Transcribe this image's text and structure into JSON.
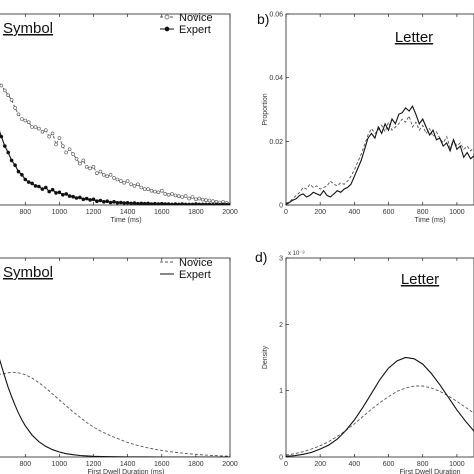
{
  "chart_data": [
    {
      "id": "a",
      "type": "line",
      "panel_label": "",
      "title": "Symbol",
      "xlabel": "Time (ms)",
      "ylabel": "",
      "xlim": [
        640,
        2000
      ],
      "ylim": [
        0,
        0.06
      ],
      "xticks": [
        800,
        1000,
        1200,
        1400,
        1600,
        1800,
        2000
      ],
      "yticks": [],
      "legend": "top-right",
      "series": [
        {
          "name": "Novice",
          "style": "dashed-open-marker",
          "x": [
            640,
            660,
            680,
            700,
            720,
            740,
            760,
            780,
            800,
            820,
            840,
            860,
            880,
            900,
            920,
            940,
            960,
            980,
            1000,
            1020,
            1040,
            1060,
            1080,
            1100,
            1120,
            1140,
            1160,
            1180,
            1200,
            1220,
            1240,
            1260,
            1280,
            1300,
            1320,
            1340,
            1360,
            1380,
            1400,
            1420,
            1440,
            1460,
            1480,
            1500,
            1520,
            1540,
            1560,
            1580,
            1600,
            1620,
            1640,
            1660,
            1680,
            1700,
            1720,
            1740,
            1760,
            1780,
            1800,
            1820,
            1840,
            1860,
            1880,
            1900,
            1920,
            1940,
            1960,
            1980,
            2000
          ],
          "y": [
            0.0395,
            0.0375,
            0.036,
            0.0345,
            0.033,
            0.0305,
            0.0285,
            0.027,
            0.0265,
            0.026,
            0.0245,
            0.0245,
            0.024,
            0.023,
            0.0235,
            0.0215,
            0.0225,
            0.019,
            0.021,
            0.0185,
            0.0165,
            0.0175,
            0.016,
            0.0145,
            0.013,
            0.014,
            0.012,
            0.0115,
            0.012,
            0.01,
            0.0105,
            0.0095,
            0.009,
            0.0095,
            0.0085,
            0.008,
            0.0075,
            0.007,
            0.0075,
            0.0065,
            0.006,
            0.0065,
            0.0055,
            0.005,
            0.005,
            0.0045,
            0.0042,
            0.004,
            0.0045,
            0.0035,
            0.0032,
            0.0035,
            0.003,
            0.0028,
            0.0025,
            0.0028,
            0.002,
            0.0025,
            0.0018,
            0.002,
            0.0017,
            0.0015,
            0.0014,
            0.0012,
            0.001,
            0.0008,
            0.0009,
            0.0006,
            0.0005
          ]
        },
        {
          "name": "Expert",
          "style": "solid-filled-marker",
          "x": [
            640,
            660,
            680,
            700,
            720,
            740,
            760,
            780,
            800,
            820,
            840,
            860,
            880,
            900,
            920,
            940,
            960,
            980,
            1000,
            1020,
            1040,
            1060,
            1080,
            1100,
            1120,
            1140,
            1160,
            1180,
            1200,
            1220,
            1240,
            1260,
            1280,
            1300,
            1320,
            1340,
            1360,
            1380,
            1400,
            1420,
            1440,
            1460,
            1480,
            1500,
            1520,
            1540,
            1560,
            1580,
            1600,
            1620,
            1640,
            1660,
            1680,
            1700,
            1720,
            1740,
            1760,
            1780,
            1800,
            1820,
            1840,
            1860,
            1880,
            1900,
            1920,
            1940,
            1960,
            1980,
            2000
          ],
          "y": [
            0.0245,
            0.0215,
            0.0185,
            0.0165,
            0.014,
            0.0125,
            0.0105,
            0.0095,
            0.008,
            0.0072,
            0.0068,
            0.006,
            0.0058,
            0.005,
            0.0055,
            0.0042,
            0.0048,
            0.0038,
            0.004,
            0.0032,
            0.0035,
            0.0028,
            0.0026,
            0.0022,
            0.0024,
            0.0018,
            0.002,
            0.0016,
            0.0018,
            0.0012,
            0.0014,
            0.001,
            0.0012,
            0.0008,
            0.001,
            0.0007,
            0.0008,
            0.0006,
            0.0007,
            0.0005,
            0.0006,
            0.0004,
            0.0005,
            0.0004,
            0.0005,
            0.0003,
            0.0004,
            0.0003,
            0.0004,
            0.0003,
            0.0003,
            0.0002,
            0.0003,
            0.0002,
            0.0003,
            0.0002,
            0.0002,
            0.0002,
            0.0003,
            0.0002,
            0.0002,
            0.0002,
            0.0002,
            0.0001,
            0.0002,
            0.0001,
            0.0002,
            0.0001,
            0.0001
          ]
        }
      ]
    },
    {
      "id": "b",
      "type": "line",
      "panel_label": "b)",
      "title": "Letter",
      "xlabel": "Time (ms)",
      "ylabel": "Proportion",
      "xlim": [
        0,
        1100
      ],
      "ylim": [
        0,
        0.06
      ],
      "xticks": [
        0,
        200,
        400,
        600,
        800,
        1000
      ],
      "yticks": [
        0,
        0.02,
        0.04,
        0.06
      ],
      "ytick_labels": [
        "0",
        "0.02",
        "0.04",
        "0.06"
      ],
      "series": [
        {
          "name": "Novice",
          "style": "dashed",
          "x": [
            0,
            20,
            40,
            60,
            80,
            100,
            120,
            140,
            160,
            180,
            200,
            220,
            240,
            260,
            280,
            300,
            320,
            340,
            360,
            380,
            400,
            420,
            440,
            460,
            480,
            500,
            520,
            540,
            560,
            580,
            600,
            620,
            640,
            660,
            680,
            700,
            720,
            740,
            760,
            780,
            800,
            820,
            840,
            860,
            880,
            900,
            920,
            940,
            960,
            980,
            1000,
            1020,
            1040,
            1060,
            1080,
            1100
          ],
          "y": [
            0.0005,
            0.001,
            0.002,
            0.003,
            0.004,
            0.0055,
            0.005,
            0.0065,
            0.0055,
            0.006,
            0.005,
            0.0055,
            0.006,
            0.0075,
            0.0065,
            0.006,
            0.007,
            0.0065,
            0.0075,
            0.009,
            0.011,
            0.0135,
            0.016,
            0.019,
            0.022,
            0.024,
            0.0225,
            0.0235,
            0.025,
            0.023,
            0.026,
            0.0235,
            0.0245,
            0.0255,
            0.027,
            0.026,
            0.028,
            0.0245,
            0.026,
            0.0235,
            0.025,
            0.0225,
            0.024,
            0.0215,
            0.023,
            0.021,
            0.0195,
            0.0215,
            0.018,
            0.0205,
            0.0185,
            0.0195,
            0.0175,
            0.0185,
            0.017,
            0.018
          ]
        },
        {
          "name": "Expert",
          "style": "solid",
          "x": [
            0,
            20,
            40,
            60,
            80,
            100,
            120,
            140,
            160,
            180,
            200,
            220,
            240,
            260,
            280,
            300,
            320,
            340,
            360,
            380,
            400,
            420,
            440,
            460,
            480,
            500,
            520,
            540,
            560,
            580,
            600,
            620,
            640,
            660,
            680,
            700,
            720,
            740,
            760,
            780,
            800,
            820,
            840,
            860,
            880,
            900,
            920,
            940,
            960,
            980,
            1000,
            1020,
            1040,
            1060,
            1080,
            1100
          ],
          "y": [
            0.0002,
            0.0008,
            0.0015,
            0.002,
            0.003,
            0.0035,
            0.0025,
            0.003,
            0.004,
            0.0035,
            0.003,
            0.0045,
            0.003,
            0.0025,
            0.0035,
            0.0045,
            0.004,
            0.005,
            0.0055,
            0.0065,
            0.009,
            0.0115,
            0.014,
            0.0175,
            0.021,
            0.0225,
            0.021,
            0.0245,
            0.0225,
            0.0255,
            0.0235,
            0.027,
            0.0255,
            0.0285,
            0.029,
            0.0305,
            0.0295,
            0.031,
            0.0285,
            0.0255,
            0.027,
            0.0245,
            0.022,
            0.0235,
            0.0205,
            0.021,
            0.0185,
            0.0195,
            0.017,
            0.0205,
            0.0175,
            0.0185,
            0.015,
            0.0165,
            0.0145,
            0.0155
          ]
        }
      ]
    },
    {
      "id": "c",
      "type": "line",
      "panel_label": "",
      "title": "Symbol",
      "xlabel": "First Dwell Duration (ms)",
      "ylabel": "",
      "xlim": [
        640,
        2000
      ],
      "ylim": [
        0,
        0.003
      ],
      "xticks": [
        800,
        1000,
        1200,
        1400,
        1600,
        1800,
        2000
      ],
      "yticks": [],
      "legend": "top-right",
      "series": [
        {
          "name": "Novice",
          "style": "dashed",
          "x": [
            640,
            680,
            720,
            760,
            800,
            840,
            880,
            920,
            960,
            1000,
            1040,
            1080,
            1120,
            1160,
            1200,
            1250,
            1300,
            1350,
            1400,
            1450,
            1500,
            1550,
            1600,
            1650,
            1700,
            1750,
            1800,
            1850,
            1900,
            1950,
            2000
          ],
          "y": [
            0.00124,
            0.00126,
            0.00128,
            0.00127,
            0.00124,
            0.00119,
            0.00112,
            0.00104,
            0.00095,
            0.00086,
            0.00077,
            0.00068,
            0.0006,
            0.00052,
            0.00045,
            0.00038,
            0.00032,
            0.00027,
            0.00022,
            0.00018,
            0.00015,
            0.00012,
            0.0001,
            8e-05,
            6.5e-05,
            5e-05,
            4e-05,
            3e-05,
            2.2e-05,
            1.6e-05,
            1.2e-05
          ]
        },
        {
          "name": "Expert",
          "style": "solid",
          "x": [
            640,
            660,
            680,
            700,
            720,
            740,
            760,
            780,
            800,
            840,
            880,
            920,
            960,
            1000,
            1040,
            1080,
            1120,
            1160,
            1200,
            1250,
            1300,
            1350,
            1400,
            1450,
            1500,
            1600,
            1700,
            1800,
            1900,
            2000
          ],
          "y": [
            0.00155,
            0.00138,
            0.00121,
            0.00105,
            0.00091,
            0.00078,
            0.00066,
            0.00056,
            0.00047,
            0.00033,
            0.00023,
            0.00016,
            0.00011,
            7.5e-05,
            5e-05,
            3.4e-05,
            2.3e-05,
            1.6e-05,
            1.1e-05,
            7e-06,
            5e-06,
            3e-06,
            2e-06,
            1.5e-06,
            1e-06,
            5e-07,
            3e-07,
            2e-07,
            1e-07,
            1e-07
          ]
        }
      ]
    },
    {
      "id": "d",
      "type": "line",
      "panel_label": "d)",
      "title": "Letter",
      "xlabel": "First Dwell Duration",
      "ylabel": "Density",
      "exponent_label": "x 10⁻³",
      "xlim": [
        0,
        1100
      ],
      "ylim": [
        0,
        0.003
      ],
      "xticks": [
        0,
        200,
        400,
        600,
        800,
        1000
      ],
      "yticks": [
        0,
        0.001,
        0.002,
        0.003
      ],
      "ytick_labels": [
        "0",
        "1",
        "2",
        "3"
      ],
      "series": [
        {
          "name": "Novice",
          "style": "dashed",
          "x": [
            0,
            50,
            100,
            150,
            200,
            250,
            300,
            350,
            400,
            450,
            500,
            550,
            600,
            650,
            700,
            750,
            800,
            850,
            900,
            950,
            1000,
            1050,
            1100
          ],
          "y": [
            3e-05,
            5e-05,
            8e-05,
            0.00012,
            0.00017,
            0.00023,
            0.00031,
            0.0004,
            0.0005,
            0.00061,
            0.00072,
            0.00082,
            0.00091,
            0.00099,
            0.00104,
            0.00107,
            0.00107,
            0.00104,
            0.00099,
            0.00092,
            0.00084,
            0.00075,
            0.00066
          ]
        },
        {
          "name": "Expert",
          "style": "solid",
          "x": [
            0,
            50,
            100,
            150,
            200,
            250,
            300,
            350,
            400,
            450,
            500,
            550,
            600,
            650,
            700,
            750,
            800,
            850,
            900,
            950,
            1000,
            1050,
            1100
          ],
          "y": [
            1e-05,
            2e-05,
            4e-05,
            7e-05,
            0.00012,
            0.00018,
            0.00027,
            0.0004,
            0.00056,
            0.00075,
            0.00096,
            0.00117,
            0.00134,
            0.00145,
            0.0015,
            0.00148,
            0.0014,
            0.00126,
            0.00109,
            0.0009,
            0.00071,
            0.00054,
            0.00039
          ]
        }
      ]
    }
  ]
}
